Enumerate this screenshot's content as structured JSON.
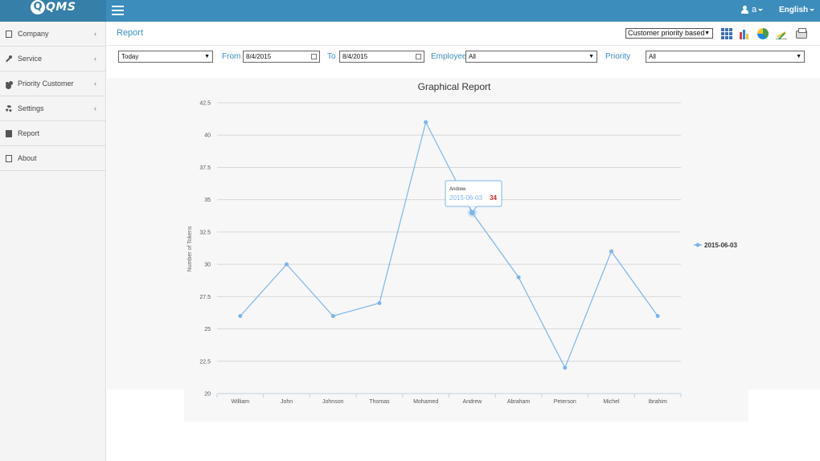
{
  "app": {
    "logo_text": "QMS",
    "logo_letter": "Q"
  },
  "topbar": {
    "user_label": "a",
    "language": "English"
  },
  "sidebar": {
    "items": [
      {
        "label": "Company",
        "icon": "building-icon",
        "has_children": true
      },
      {
        "label": "Service",
        "icon": "wrench-icon",
        "has_children": true
      },
      {
        "label": "Priority Customer",
        "icon": "users-icon",
        "has_children": true
      },
      {
        "label": "Settings",
        "icon": "gear-icon",
        "has_children": true
      },
      {
        "label": "Report",
        "icon": "file-icon",
        "has_children": false
      },
      {
        "label": "About",
        "icon": "edit-icon",
        "has_children": false
      }
    ],
    "chevron": "‹"
  },
  "page": {
    "title": "Report"
  },
  "toolbar": {
    "report_type": "Customer priority based",
    "icons": [
      "grid-view-icon",
      "bar-chart-icon",
      "pie-chart-icon",
      "line-chart-icon",
      "print-icon"
    ]
  },
  "filters": {
    "period": "Today",
    "from_label": "From",
    "from_value": "8/4/2015",
    "to_label": "To",
    "to_value": "8/4/2015",
    "employee_label": "Employee",
    "employee_value": "All",
    "priority_label": "Priority",
    "priority_value": "All"
  },
  "chart_data": {
    "type": "line",
    "title": "Graphical Report",
    "xlabel": "",
    "ylabel": "Number of Tokens",
    "categories": [
      "William",
      "John",
      "Johnson",
      "Thomas",
      "Mohamed",
      "Andrew",
      "Abraham",
      "Peterson",
      "Michel",
      "Ibrahim"
    ],
    "series": [
      {
        "name": "2015-06-03",
        "values": [
          26,
          30,
          26,
          27,
          41,
          34,
          29,
          22,
          31,
          26
        ],
        "color": "#7cb5ec"
      }
    ],
    "yticks": [
      "20",
      "22.5",
      "25",
      "27.5",
      "30",
      "32.5",
      "35",
      "37.5",
      "40",
      "42.5"
    ],
    "ylim": [
      20,
      42.5
    ],
    "grid": true,
    "legend_position": "right",
    "tooltip": {
      "category": "Andrew",
      "series": "2015-06-03",
      "value": "34"
    }
  }
}
